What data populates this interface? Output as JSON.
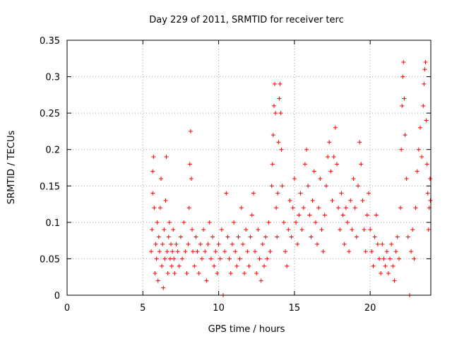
{
  "chart_data": {
    "type": "scatter",
    "title": "Day 229 of 2011, SRMTID for receiver terc",
    "xlabel": "GPS time / hours",
    "ylabel": "SRMTID / TECUs",
    "xlim": [
      0,
      24
    ],
    "ylim": [
      0,
      0.35
    ],
    "xticks": [
      0,
      5,
      10,
      15,
      20
    ],
    "xtick_labels": [
      "0",
      "5",
      "10",
      "15",
      "20"
    ],
    "yticks": [
      0,
      0.05,
      0.1,
      0.15,
      0.2,
      0.25,
      0.3,
      0.35
    ],
    "ytick_labels": [
      "0",
      "0.05",
      "0.1",
      "0.15",
      "0.2",
      "0.25",
      "0.3",
      "0.35"
    ],
    "grid": true,
    "marker": "+",
    "color": "#ff0000",
    "series": [
      {
        "name": "SRMTID",
        "points": [
          [
            5.55,
            0.06
          ],
          [
            5.6,
            0.09
          ],
          [
            5.65,
            0.14
          ],
          [
            5.65,
            0.17
          ],
          [
            5.7,
            0.19
          ],
          [
            5.75,
            0.12
          ],
          [
            5.8,
            0.03
          ],
          [
            5.85,
            0.07
          ],
          [
            5.9,
            0.05
          ],
          [
            5.95,
            0.1
          ],
          [
            6.0,
            0.02
          ],
          [
            6.05,
            0.08
          ],
          [
            6.1,
            0.06
          ],
          [
            6.15,
            0.12
          ],
          [
            6.2,
            0.16
          ],
          [
            6.25,
            0.04
          ],
          [
            6.3,
            0.07
          ],
          [
            6.35,
            0.01
          ],
          [
            6.4,
            0.09
          ],
          [
            6.45,
            0.05
          ],
          [
            6.5,
            0.13
          ],
          [
            6.55,
            0.19
          ],
          [
            6.6,
            0.06
          ],
          [
            6.65,
            0.03
          ],
          [
            6.7,
            0.08
          ],
          [
            6.75,
            0.1
          ],
          [
            6.8,
            0.05
          ],
          [
            6.85,
            0.07
          ],
          [
            6.9,
            0.04
          ],
          [
            6.95,
            0.06
          ],
          [
            7.0,
            0.09
          ],
          [
            7.05,
            0.05
          ],
          [
            7.1,
            0.03
          ],
          [
            7.2,
            0.07
          ],
          [
            7.3,
            0.06
          ],
          [
            7.4,
            0.04
          ],
          [
            7.5,
            0.08
          ],
          [
            7.6,
            0.05
          ],
          [
            7.7,
            0.1
          ],
          [
            7.8,
            0.06
          ],
          [
            7.9,
            0.03
          ],
          [
            8.0,
            0.07
          ],
          [
            8.05,
            0.12
          ],
          [
            8.1,
            0.18
          ],
          [
            8.15,
            0.225
          ],
          [
            8.2,
            0.16
          ],
          [
            8.25,
            0.09
          ],
          [
            8.3,
            0.06
          ],
          [
            8.4,
            0.04
          ],
          [
            8.5,
            0.08
          ],
          [
            8.6,
            0.06
          ],
          [
            8.7,
            0.03
          ],
          [
            8.8,
            0.07
          ],
          [
            8.9,
            0.05
          ],
          [
            9.0,
            0.09
          ],
          [
            9.1,
            0.06
          ],
          [
            9.2,
            0.02
          ],
          [
            9.3,
            0.07
          ],
          [
            9.4,
            0.1
          ],
          [
            9.5,
            0.05
          ],
          [
            9.6,
            0.08
          ],
          [
            9.7,
            0.04
          ],
          [
            9.8,
            0.06
          ],
          [
            9.9,
            0.03
          ],
          [
            10.0,
            0.07
          ],
          [
            10.1,
            0.05
          ],
          [
            10.2,
            0.09
          ],
          [
            10.3,
            0.0
          ],
          [
            10.4,
            0.06
          ],
          [
            10.5,
            0.14
          ],
          [
            10.6,
            0.08
          ],
          [
            10.7,
            0.05
          ],
          [
            10.8,
            0.03
          ],
          [
            10.9,
            0.07
          ],
          [
            11.0,
            0.1
          ],
          [
            11.1,
            0.06
          ],
          [
            11.2,
            0.04
          ],
          [
            11.3,
            0.08
          ],
          [
            11.4,
            0.05
          ],
          [
            11.5,
            0.12
          ],
          [
            11.6,
            0.07
          ],
          [
            11.7,
            0.03
          ],
          [
            11.8,
            0.09
          ],
          [
            11.9,
            0.06
          ],
          [
            12.0,
            0.04
          ],
          [
            12.1,
            0.08
          ],
          [
            12.2,
            0.11
          ],
          [
            12.3,
            0.14
          ],
          [
            12.4,
            0.06
          ],
          [
            12.5,
            0.03
          ],
          [
            12.6,
            0.09
          ],
          [
            12.7,
            0.05
          ],
          [
            12.8,
            0.02
          ],
          [
            12.9,
            0.07
          ],
          [
            13.0,
            0.04
          ],
          [
            13.1,
            0.08
          ],
          [
            13.2,
            0.05
          ],
          [
            13.3,
            0.1
          ],
          [
            13.4,
            0.06
          ],
          [
            13.5,
            0.15
          ],
          [
            13.55,
            0.18
          ],
          [
            13.6,
            0.22
          ],
          [
            13.65,
            0.26
          ],
          [
            13.7,
            0.29
          ],
          [
            13.75,
            0.25
          ],
          [
            13.8,
            0.12
          ],
          [
            13.85,
            0.08
          ],
          [
            13.9,
            0.14
          ],
          [
            13.95,
            0.21
          ],
          [
            14.0,
            0.27
          ],
          [
            14.05,
            0.29
          ],
          [
            14.1,
            0.25
          ],
          [
            14.15,
            0.2
          ],
          [
            14.2,
            0.15
          ],
          [
            14.3,
            0.1
          ],
          [
            14.4,
            0.06
          ],
          [
            14.5,
            0.04
          ],
          [
            14.6,
            0.09
          ],
          [
            14.7,
            0.13
          ],
          [
            14.8,
            0.08
          ],
          [
            14.9,
            0.12
          ],
          [
            15.0,
            0.16
          ],
          [
            15.1,
            0.1
          ],
          [
            15.2,
            0.07
          ],
          [
            15.3,
            0.11
          ],
          [
            15.4,
            0.14
          ],
          [
            15.5,
            0.09
          ],
          [
            15.6,
            0.12
          ],
          [
            15.7,
            0.18
          ],
          [
            15.8,
            0.2
          ],
          [
            15.9,
            0.15
          ],
          [
            16.0,
            0.11
          ],
          [
            16.1,
            0.08
          ],
          [
            16.2,
            0.13
          ],
          [
            16.3,
            0.17
          ],
          [
            16.4,
            0.1
          ],
          [
            16.5,
            0.07
          ],
          [
            16.6,
            0.12
          ],
          [
            16.7,
            0.16
          ],
          [
            16.8,
            0.09
          ],
          [
            16.9,
            0.06
          ],
          [
            17.0,
            0.11
          ],
          [
            17.1,
            0.15
          ],
          [
            17.2,
            0.19
          ],
          [
            17.3,
            0.21
          ],
          [
            17.4,
            0.17
          ],
          [
            17.5,
            0.13
          ],
          [
            17.6,
            0.19
          ],
          [
            17.7,
            0.23
          ],
          [
            17.8,
            0.18
          ],
          [
            17.9,
            0.12
          ],
          [
            18.0,
            0.09
          ],
          [
            18.1,
            0.14
          ],
          [
            18.2,
            0.11
          ],
          [
            18.3,
            0.07
          ],
          [
            18.4,
            0.12
          ],
          [
            18.5,
            0.1
          ],
          [
            18.6,
            0.06
          ],
          [
            18.7,
            0.13
          ],
          [
            18.8,
            0.09
          ],
          [
            18.9,
            0.16
          ],
          [
            19.0,
            0.12
          ],
          [
            19.1,
            0.08
          ],
          [
            19.2,
            0.15
          ],
          [
            19.3,
            0.21
          ],
          [
            19.4,
            0.18
          ],
          [
            19.5,
            0.13
          ],
          [
            19.6,
            0.09
          ],
          [
            19.7,
            0.06
          ],
          [
            19.8,
            0.11
          ],
          [
            19.9,
            0.14
          ],
          [
            20.0,
            0.09
          ],
          [
            20.1,
            0.06
          ],
          [
            20.2,
            0.04
          ],
          [
            20.3,
            0.08
          ],
          [
            20.4,
            0.11
          ],
          [
            20.5,
            0.07
          ],
          [
            20.6,
            0.05
          ],
          [
            20.7,
            0.03
          ],
          [
            20.8,
            0.07
          ],
          [
            20.9,
            0.05
          ],
          [
            21.0,
            0.04
          ],
          [
            21.1,
            0.06
          ],
          [
            21.2,
            0.03
          ],
          [
            21.3,
            0.05
          ],
          [
            21.4,
            0.07
          ],
          [
            21.5,
            0.04
          ],
          [
            21.6,
            0.02
          ],
          [
            21.7,
            0.06
          ],
          [
            21.8,
            0.08
          ],
          [
            21.9,
            0.05
          ],
          [
            22.0,
            0.12
          ],
          [
            22.05,
            0.2
          ],
          [
            22.1,
            0.26
          ],
          [
            22.15,
            0.3
          ],
          [
            22.2,
            0.32
          ],
          [
            22.25,
            0.27
          ],
          [
            22.3,
            0.22
          ],
          [
            22.4,
            0.16
          ],
          [
            22.5,
            0.08
          ],
          [
            22.6,
            0.0
          ],
          [
            22.7,
            0.06
          ],
          [
            22.8,
            0.09
          ],
          [
            22.9,
            0.05
          ],
          [
            23.0,
            0.12
          ],
          [
            23.1,
            0.17
          ],
          [
            23.2,
            0.2
          ],
          [
            23.3,
            0.23
          ],
          [
            23.4,
            0.19
          ],
          [
            23.5,
            0.26
          ],
          [
            23.55,
            0.29
          ],
          [
            23.6,
            0.31
          ],
          [
            23.65,
            0.32
          ],
          [
            23.7,
            0.24
          ],
          [
            23.75,
            0.18
          ],
          [
            23.8,
            0.14
          ],
          [
            23.85,
            0.09
          ],
          [
            23.9,
            0.12
          ],
          [
            23.95,
            0.16
          ],
          [
            23.97,
            0.13
          ]
        ]
      }
    ]
  }
}
